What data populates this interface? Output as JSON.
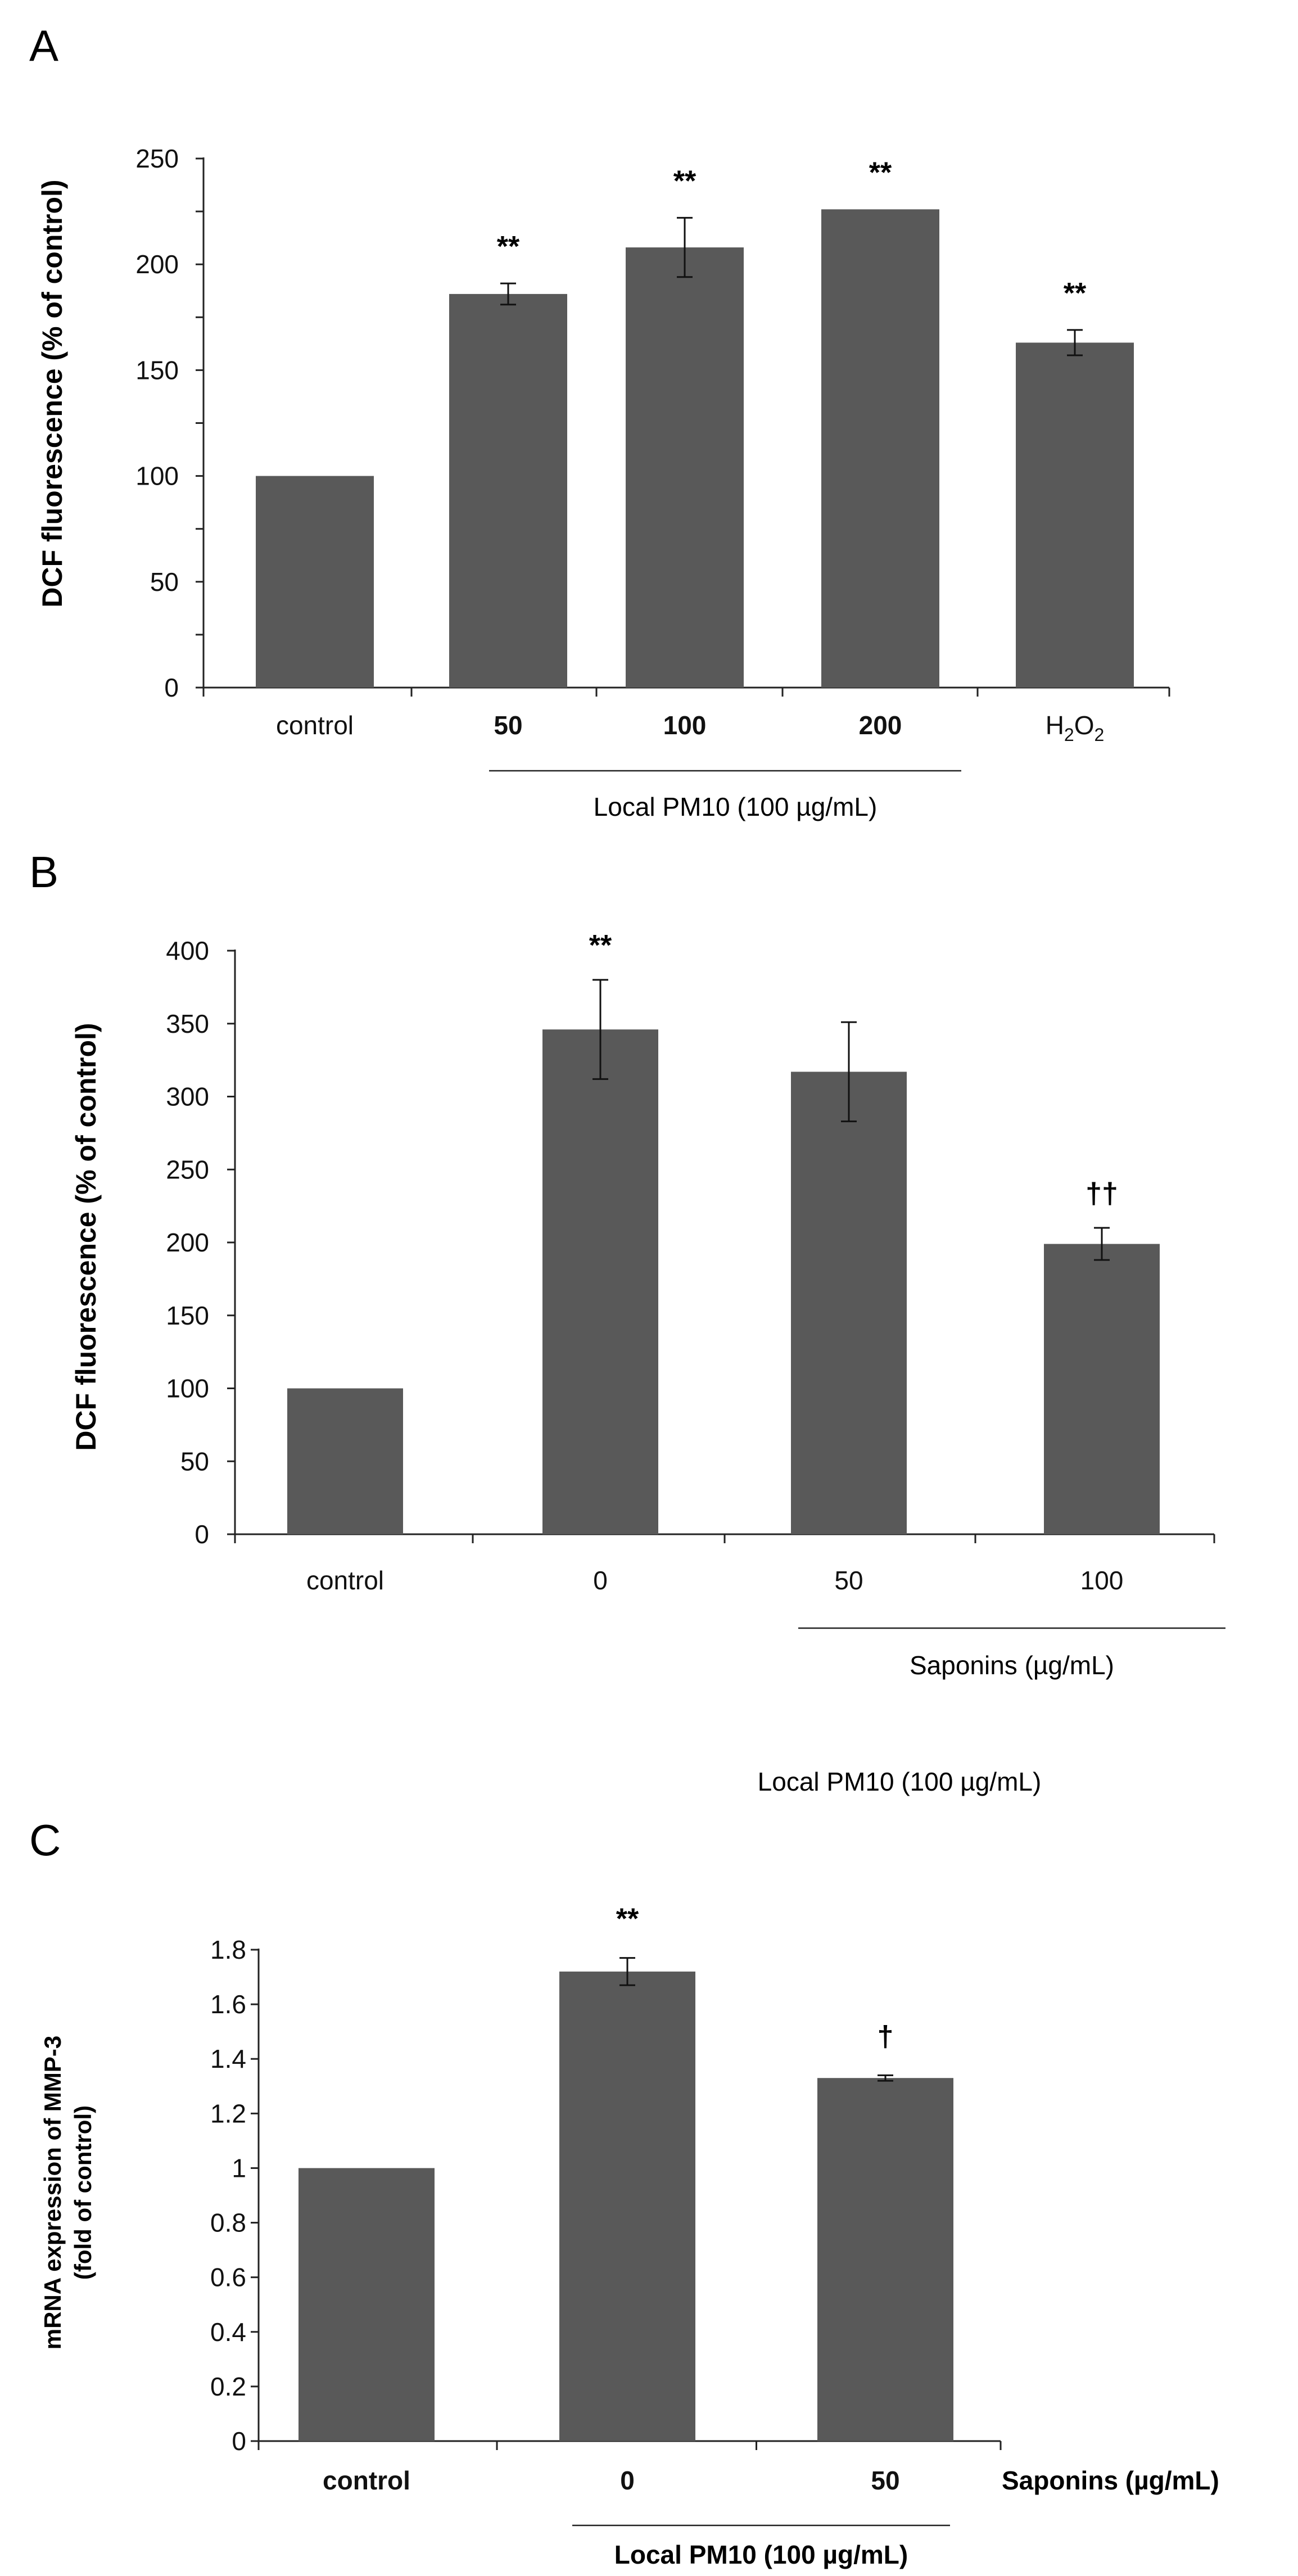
{
  "chart_data": [
    {
      "panel": "A",
      "type": "bar",
      "ylabel": "DCF fluorescence (% of control)",
      "ylim": [
        0,
        250
      ],
      "yticks": [
        "0",
        "50",
        "100",
        "150",
        "200",
        "250"
      ],
      "categories": [
        "control",
        "50",
        "100",
        "200",
        "H2O2"
      ],
      "values": [
        100,
        186,
        208,
        226,
        163
      ],
      "errors": [
        0,
        5,
        14,
        0,
        6
      ],
      "annotations": [
        "",
        "**",
        "**",
        "**",
        "**"
      ],
      "group_label": "Local PM10 (100 µg/mL)"
    },
    {
      "panel": "B",
      "type": "bar",
      "ylabel": "DCF fluorescence (% of control)",
      "ylim": [
        0,
        400
      ],
      "yticks": [
        "0",
        "50",
        "100",
        "150",
        "200",
        "250",
        "300",
        "350",
        "400"
      ],
      "categories": [
        "control",
        "0",
        "50",
        "100"
      ],
      "values": [
        100,
        346,
        317,
        199
      ],
      "errors": [
        0,
        34,
        34,
        11
      ],
      "annotations": [
        "",
        "**",
        "",
        "††"
      ],
      "group_label": "Saponins (µg/mL)",
      "outer_group_label": "Local PM10 (100 µg/mL)"
    },
    {
      "panel": "C",
      "type": "bar",
      "ylabel": "mRNA expression of MMP-3 (fold of control)",
      "ylabel_lines": [
        "mRNA expression of MMP-3",
        "(fold of control)"
      ],
      "ylim": [
        0,
        1.8
      ],
      "yticks": [
        "0",
        "0.2",
        "0.4",
        "0.6",
        "0.8",
        "1",
        "1.2",
        "1.4",
        "1.6",
        "1.8"
      ],
      "categories": [
        "control",
        "0",
        "50"
      ],
      "values": [
        1.0,
        1.72,
        1.33
      ],
      "errors": [
        0,
        0.05,
        0.01
      ],
      "annotations": [
        "",
        "**",
        "†"
      ],
      "group_label": "Local PM10 (100 µg/mL)",
      "side_label": "Saponins (µg/mL)"
    }
  ]
}
